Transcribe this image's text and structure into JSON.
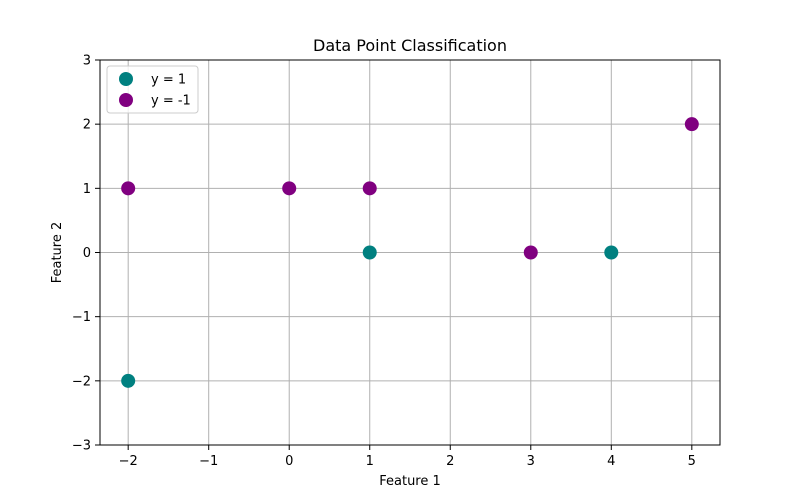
{
  "chart_data": {
    "type": "scatter",
    "title": "Data Point Classification",
    "xlabel": "Feature 1",
    "ylabel": "Feature 2",
    "xlim": [
      -2.35,
      5.35
    ],
    "ylim": [
      -3,
      3
    ],
    "xticks": [
      -2,
      -1,
      0,
      1,
      2,
      3,
      4,
      5
    ],
    "yticks": [
      -3,
      -2,
      -1,
      0,
      1,
      2,
      3
    ],
    "xtick_labels": [
      "−2",
      "−1",
      "0",
      "1",
      "2",
      "3",
      "4",
      "5"
    ],
    "ytick_labels": [
      "−3",
      "−2",
      "−1",
      "0",
      "1",
      "2",
      "3"
    ],
    "grid": true,
    "legend_position": "top-left",
    "series": [
      {
        "name": "y = 1",
        "color": "#008080",
        "points": [
          {
            "x": 1,
            "y": 0
          },
          {
            "x": 4,
            "y": 0
          },
          {
            "x": -2,
            "y": -2
          }
        ]
      },
      {
        "name": "y = -1",
        "color": "#800080",
        "points": [
          {
            "x": -2,
            "y": 1
          },
          {
            "x": 0,
            "y": 1
          },
          {
            "x": 1,
            "y": 1
          },
          {
            "x": 3,
            "y": 0
          },
          {
            "x": 5,
            "y": 2
          }
        ]
      }
    ]
  }
}
